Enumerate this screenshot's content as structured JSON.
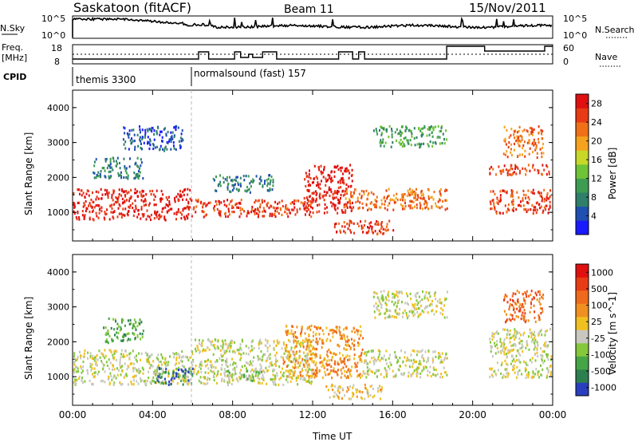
{
  "header": {
    "station": "Saskatoon (fitACF)",
    "beam": "Beam 11",
    "date": "15/Nov/2011"
  },
  "noise_panel": {
    "left_label": "N.Sky",
    "left_ticks": [
      "10^5",
      "10^0"
    ],
    "right_label": "N.Search",
    "right_ticks": [
      "10^5",
      "10^0"
    ]
  },
  "freq_panel": {
    "left_label_1": "Freq.",
    "left_label_2": "[MHz]",
    "left_ticks": [
      "18",
      "8"
    ],
    "right_label": "Nave",
    "right_ticks": [
      "60",
      "0"
    ]
  },
  "cpid": {
    "label": "CPID",
    "segments": [
      {
        "name": "themis 3300",
        "start_h": 0
      },
      {
        "name": "normalsound (fast) 157",
        "start_h": 6.0
      }
    ]
  },
  "axes": {
    "y_label": "Slant Range [km]",
    "y_ticks": [
      "1000",
      "2000",
      "3000",
      "4000"
    ],
    "x_label": "Time UT",
    "x_ticks": [
      "00:00",
      "04:00",
      "08:00",
      "12:00",
      "16:00",
      "20:00",
      "00:00"
    ]
  },
  "colors": {
    "power": [
      "#1a1aff",
      "#1f4fb0",
      "#2f7f6a",
      "#3d9c52",
      "#6fc336",
      "#c8d828",
      "#f5a21e",
      "#f07018",
      "#e83a14",
      "#e01010"
    ],
    "velocity": [
      "#2a3fbf",
      "#2d7f4f",
      "#46a546",
      "#85c83c",
      "#c8c8c0",
      "#f0c020",
      "#f09020",
      "#ef6a1c",
      "#e83c16",
      "#e01010"
    ]
  },
  "chart_data": [
    {
      "type": "heatmap",
      "panel": "power",
      "colorbar_label": "Power [dB]",
      "colorbar_ticks": [
        "4",
        "8",
        "12",
        "16",
        "20",
        "24",
        "28"
      ],
      "xlim_hours": [
        0,
        24
      ],
      "ylim_km": [
        180,
        4500
      ],
      "regions": [
        {
          "t0": 0.0,
          "t1": 6.0,
          "r0": 800,
          "r1": 1700,
          "level": 9
        },
        {
          "t0": 1.0,
          "t1": 3.5,
          "r0": 2000,
          "r1": 2600,
          "level": 2
        },
        {
          "t0": 2.5,
          "t1": 5.5,
          "r0": 2800,
          "r1": 3500,
          "level": 1
        },
        {
          "t0": 6.0,
          "t1": 12.0,
          "r0": 900,
          "r1": 1400,
          "level": 8
        },
        {
          "t0": 7.0,
          "t1": 10.0,
          "r0": 1600,
          "r1": 2100,
          "level": 2
        },
        {
          "t0": 11.5,
          "t1": 14.0,
          "r0": 1000,
          "r1": 2400,
          "level": 9
        },
        {
          "t0": 13.0,
          "t1": 16.0,
          "r0": 400,
          "r1": 800,
          "level": 8
        },
        {
          "t0": 13.5,
          "t1": 18.7,
          "r0": 1100,
          "r1": 1700,
          "level": 7
        },
        {
          "t0": 15.0,
          "t1": 18.7,
          "r0": 2900,
          "r1": 3500,
          "level": 3
        },
        {
          "t0": 20.8,
          "t1": 23.9,
          "r0": 1000,
          "r1": 1700,
          "level": 8
        },
        {
          "t0": 20.8,
          "t1": 23.9,
          "r0": 2100,
          "r1": 2400,
          "level": 8
        },
        {
          "t0": 21.5,
          "t1": 23.5,
          "r0": 2600,
          "r1": 3500,
          "level": 7
        }
      ]
    },
    {
      "type": "heatmap",
      "panel": "velocity",
      "colorbar_label": "Velocity [m s^-1]",
      "colorbar_ticks": [
        "1000",
        "500",
        "100",
        "25",
        "-25",
        "-100",
        "-500",
        "-1000"
      ],
      "xlim_hours": [
        0,
        24
      ],
      "ylim_km": [
        180,
        4500
      ],
      "regions": [
        {
          "t0": 0.0,
          "t1": 6.0,
          "r0": 800,
          "r1": 1800,
          "level": 4
        },
        {
          "t0": 4.0,
          "t1": 6.0,
          "r0": 800,
          "r1": 1300,
          "level": 1
        },
        {
          "t0": 1.5,
          "t1": 3.5,
          "r0": 2000,
          "r1": 2700,
          "level": 2
        },
        {
          "t0": 6.0,
          "t1": 12.0,
          "r0": 800,
          "r1": 2100,
          "level": 4
        },
        {
          "t0": 7.5,
          "t1": 9.5,
          "r0": 900,
          "r1": 1200,
          "level": 3
        },
        {
          "t0": 10.5,
          "t1": 14.5,
          "r0": 1000,
          "r1": 2500,
          "level": 6
        },
        {
          "t0": 12.5,
          "t1": 15.5,
          "r0": 400,
          "r1": 800,
          "level": 5
        },
        {
          "t0": 14.5,
          "t1": 18.7,
          "r0": 1000,
          "r1": 1800,
          "level": 4
        },
        {
          "t0": 15.0,
          "t1": 18.7,
          "r0": 2700,
          "r1": 3500,
          "level": 4
        },
        {
          "t0": 20.8,
          "t1": 23.9,
          "r0": 1000,
          "r1": 2400,
          "level": 4
        },
        {
          "t0": 21.5,
          "t1": 23.5,
          "r0": 2600,
          "r1": 3500,
          "level": 7
        }
      ]
    }
  ]
}
